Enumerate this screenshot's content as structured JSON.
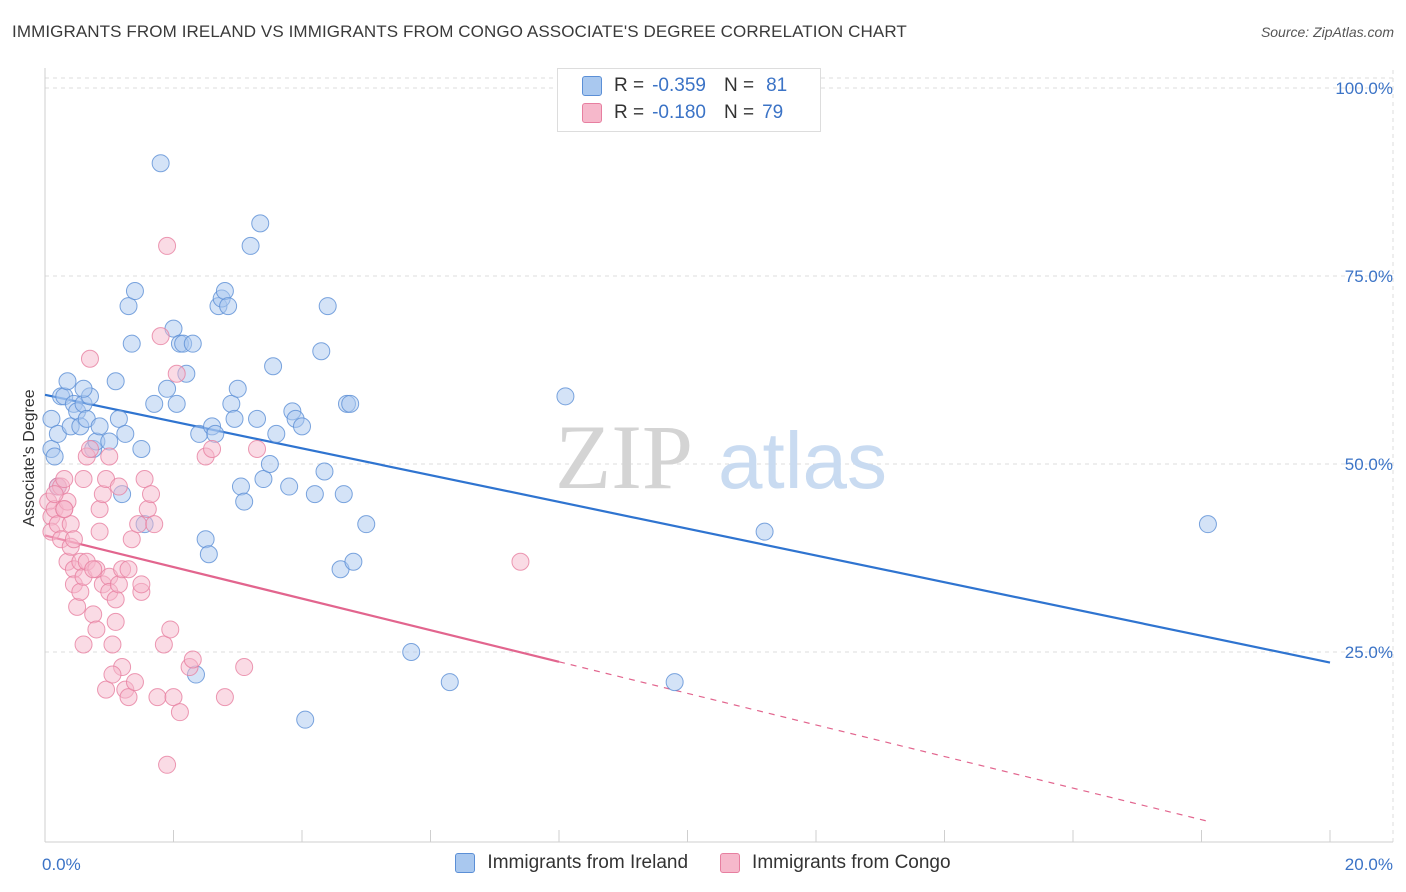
{
  "header": {
    "title": "IMMIGRANTS FROM IRELAND VS IMMIGRANTS FROM CONGO ASSOCIATE'S DEGREE CORRELATION CHART",
    "source": "Source: ZipAtlas.com"
  },
  "legend": {
    "rows": [
      {
        "r_label": "R =",
        "r_value": "-0.359",
        "n_label": "N =",
        "n_value": "81"
      },
      {
        "r_label": "R =",
        "r_value": "-0.180",
        "n_label": "N =",
        "n_value": "79"
      }
    ]
  },
  "colors": {
    "blue_fill": "#a9c8ef",
    "blue_stroke": "#5b8fd6",
    "blue_line": "#2f74d0",
    "pink_fill": "#f6b8cb",
    "pink_stroke": "#e77fa0",
    "pink_line": "#e2658e",
    "grid": "#dddddd",
    "accent_text": "#3b73c6"
  },
  "watermark": {
    "part1": "ZIP",
    "part2": "atlas"
  },
  "chart_data": {
    "type": "scatter",
    "title": "IMMIGRANTS FROM IRELAND VS IMMIGRANTS FROM CONGO ASSOCIATE'S DEGREE CORRELATION CHART",
    "xlabel": "",
    "ylabel": "Associate's Degree",
    "xlim": [
      0,
      20
    ],
    "ylim": [
      0,
      100
    ],
    "x_tick_labels": [
      "0.0%",
      "20.0%"
    ],
    "y_tick_labels": [
      "100.0%",
      "75.0%",
      "50.0%",
      "25.0%"
    ],
    "y_ticks": [
      100,
      75,
      50,
      25
    ],
    "grid": true,
    "series": [
      {
        "name": "Immigrants from Ireland",
        "color": "blue",
        "r": -0.359,
        "n": 81,
        "trend": {
          "x0": 0,
          "y0": 59.2,
          "x1": 20,
          "y1": 23.6,
          "solid_until": 20
        },
        "points": [
          [
            0.1,
            56
          ],
          [
            0.1,
            52
          ],
          [
            0.15,
            51
          ],
          [
            0.2,
            54
          ],
          [
            0.25,
            59
          ],
          [
            0.3,
            59
          ],
          [
            0.35,
            61
          ],
          [
            0.4,
            55
          ],
          [
            0.45,
            58
          ],
          [
            0.5,
            57
          ],
          [
            0.55,
            55
          ],
          [
            0.6,
            58
          ],
          [
            0.65,
            56
          ],
          [
            0.7,
            59
          ],
          [
            0.75,
            52
          ],
          [
            0.8,
            53
          ],
          [
            0.85,
            55
          ],
          [
            1.0,
            53
          ],
          [
            1.1,
            61
          ],
          [
            1.15,
            56
          ],
          [
            1.2,
            46
          ],
          [
            1.25,
            54
          ],
          [
            1.3,
            71
          ],
          [
            1.35,
            66
          ],
          [
            1.4,
            73
          ],
          [
            1.5,
            52
          ],
          [
            1.55,
            42
          ],
          [
            1.7,
            58
          ],
          [
            1.8,
            90
          ],
          [
            1.9,
            60
          ],
          [
            2.0,
            68
          ],
          [
            2.05,
            58
          ],
          [
            2.1,
            66
          ],
          [
            2.15,
            66
          ],
          [
            2.2,
            62
          ],
          [
            2.3,
            66
          ],
          [
            2.35,
            22
          ],
          [
            2.4,
            54
          ],
          [
            2.5,
            40
          ],
          [
            2.55,
            38
          ],
          [
            2.6,
            55
          ],
          [
            2.65,
            54
          ],
          [
            2.7,
            71
          ],
          [
            2.75,
            72
          ],
          [
            2.8,
            73
          ],
          [
            2.85,
            71
          ],
          [
            2.9,
            58
          ],
          [
            2.95,
            56
          ],
          [
            3.0,
            60
          ],
          [
            3.05,
            47
          ],
          [
            3.1,
            45
          ],
          [
            3.2,
            79
          ],
          [
            3.3,
            56
          ],
          [
            3.35,
            82
          ],
          [
            3.4,
            48
          ],
          [
            3.5,
            50
          ],
          [
            3.55,
            63
          ],
          [
            3.6,
            54
          ],
          [
            3.8,
            47
          ],
          [
            3.85,
            57
          ],
          [
            3.9,
            56
          ],
          [
            4.0,
            55
          ],
          [
            4.05,
            16
          ],
          [
            4.2,
            46
          ],
          [
            4.3,
            65
          ],
          [
            4.35,
            49
          ],
          [
            4.4,
            71
          ],
          [
            4.6,
            36
          ],
          [
            4.65,
            46
          ],
          [
            4.7,
            58
          ],
          [
            4.75,
            58
          ],
          [
            4.8,
            37
          ],
          [
            5.0,
            42
          ],
          [
            5.7,
            25
          ],
          [
            6.3,
            21
          ],
          [
            8.1,
            59
          ],
          [
            9.8,
            21
          ],
          [
            11.2,
            41
          ],
          [
            18.1,
            42
          ],
          [
            0.2,
            47
          ],
          [
            0.6,
            60
          ]
        ]
      },
      {
        "name": "Immigrants from Congo",
        "color": "pink",
        "r": -0.18,
        "n": 79,
        "trend": {
          "x0": 0,
          "y0": 40.5,
          "x1": 20,
          "y1": -1.5,
          "solid_until": 8.0
        },
        "points": [
          [
            0.05,
            45
          ],
          [
            0.1,
            43
          ],
          [
            0.1,
            41
          ],
          [
            0.15,
            44
          ],
          [
            0.2,
            47
          ],
          [
            0.2,
            42
          ],
          [
            0.25,
            47
          ],
          [
            0.25,
            40
          ],
          [
            0.3,
            48
          ],
          [
            0.3,
            44
          ],
          [
            0.35,
            45
          ],
          [
            0.35,
            37
          ],
          [
            0.4,
            42
          ],
          [
            0.4,
            39
          ],
          [
            0.45,
            36
          ],
          [
            0.45,
            34
          ],
          [
            0.5,
            31
          ],
          [
            0.55,
            37
          ],
          [
            0.55,
            33
          ],
          [
            0.6,
            26
          ],
          [
            0.6,
            35
          ],
          [
            0.65,
            37
          ],
          [
            0.65,
            51
          ],
          [
            0.7,
            52
          ],
          [
            0.7,
            64
          ],
          [
            0.75,
            30
          ],
          [
            0.8,
            36
          ],
          [
            0.8,
            28
          ],
          [
            0.85,
            44
          ],
          [
            0.9,
            46
          ],
          [
            0.9,
            34
          ],
          [
            0.95,
            48
          ],
          [
            1.0,
            51
          ],
          [
            1.0,
            35
          ],
          [
            1.0,
            33
          ],
          [
            1.05,
            26
          ],
          [
            1.1,
            29
          ],
          [
            1.1,
            32
          ],
          [
            1.15,
            34
          ],
          [
            1.2,
            36
          ],
          [
            1.2,
            23
          ],
          [
            1.25,
            20
          ],
          [
            1.3,
            36
          ],
          [
            1.3,
            19
          ],
          [
            1.35,
            40
          ],
          [
            1.4,
            21
          ],
          [
            1.45,
            42
          ],
          [
            1.5,
            33
          ],
          [
            1.5,
            34
          ],
          [
            1.55,
            48
          ],
          [
            1.6,
            44
          ],
          [
            1.65,
            46
          ],
          [
            1.7,
            42
          ],
          [
            1.75,
            19
          ],
          [
            1.8,
            67
          ],
          [
            1.85,
            26
          ],
          [
            1.9,
            79
          ],
          [
            1.9,
            10
          ],
          [
            1.95,
            28
          ],
          [
            2.0,
            19
          ],
          [
            2.05,
            62
          ],
          [
            2.1,
            17
          ],
          [
            2.25,
            23
          ],
          [
            2.3,
            24
          ],
          [
            2.5,
            51
          ],
          [
            2.6,
            52
          ],
          [
            2.8,
            19
          ],
          [
            3.1,
            23
          ],
          [
            3.3,
            52
          ],
          [
            7.4,
            37
          ],
          [
            0.15,
            46
          ],
          [
            0.3,
            44
          ],
          [
            0.45,
            40
          ],
          [
            0.6,
            48
          ],
          [
            0.75,
            36
          ],
          [
            0.85,
            41
          ],
          [
            0.95,
            20
          ],
          [
            1.05,
            22
          ],
          [
            1.15,
            47
          ]
        ]
      }
    ]
  }
}
